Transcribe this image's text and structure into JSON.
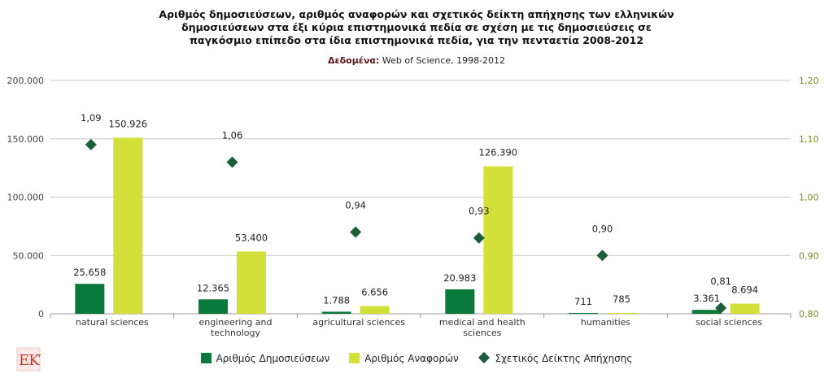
{
  "title": "Αριθμός δημοσιεύσεων, αριθμός αναφορών και σχετικός δείκτη απήχησης των ελληνικών\nδημοσιεύσεων στα έξι κύρια επιστημονικά πεδία σε σχέση με τις δημοσιεύσεις σε\nπαγκόσμιο επίπεδο στα ίδια επιστημονικά πεδία, για την πενταετία 2008-2012",
  "source_label": "Δεδομένα:",
  "source_value": "Web of Science, 1998-2012",
  "logo_text": "EKT",
  "colors": {
    "publications": "#0a7a3c",
    "citations": "#d4e03a",
    "impact": "#1c5e3a",
    "right_axis": "#7a8a2a",
    "grid": "#c8c8c8"
  },
  "chart_data": {
    "type": "bar",
    "title": "Αριθμός δημοσιεύσεων, αριθμός αναφορών και σχετικός δείκτη απήχησης των ελληνικών δημοσιεύσεων στα έξι κύρια επιστημονικά πεδία σε σχέση με τις δημοσιεύσεις σε παγκόσμιο επίπεδο στα ίδια επιστημονικά πεδία, για την πενταετία 2008-2012",
    "categories": [
      "natural sciences",
      "engineering and technology",
      "agricultural sciences",
      "medical and health sciences",
      "humanities",
      "social sciences"
    ],
    "category_lines": [
      [
        "natural sciences"
      ],
      [
        "engineering and",
        "technology"
      ],
      [
        "agricultural sciences"
      ],
      [
        "medical and health",
        "sciences"
      ],
      [
        "humanities"
      ],
      [
        "social sciences"
      ]
    ],
    "series": [
      {
        "name": "Αριθμός Δημοσιεύσεων",
        "type": "bar",
        "axis": "left",
        "values": [
          25658,
          12365,
          1788,
          20983,
          711,
          3361
        ],
        "labels": [
          "25.658",
          "12.365",
          "1.788",
          "20.983",
          "711",
          "3.361"
        ]
      },
      {
        "name": "Αριθμός Αναφορών",
        "type": "bar",
        "axis": "left",
        "values": [
          150926,
          53400,
          6656,
          126390,
          785,
          8694
        ],
        "labels": [
          "150.926",
          "53.400",
          "6.656",
          "126.390",
          "785",
          "8.694"
        ]
      },
      {
        "name": "Σχετικός Δείκτης Απήχησης",
        "type": "scatter",
        "marker": "diamond",
        "axis": "right",
        "values": [
          1.09,
          1.06,
          0.94,
          0.93,
          0.9,
          0.81
        ],
        "labels": [
          "1,09",
          "1,06",
          "0,94",
          "0,93",
          "0,90",
          "0,81"
        ]
      }
    ],
    "y_left": {
      "min": 0,
      "max": 200000,
      "ticks": [
        0,
        50000,
        100000,
        150000,
        200000
      ],
      "tick_labels": [
        "0",
        "50.000",
        "100.000",
        "150.000",
        "200.000"
      ]
    },
    "y_right": {
      "min": 0.8,
      "max": 1.2,
      "ticks": [
        0.8,
        0.9,
        1.0,
        1.1,
        1.2
      ],
      "tick_labels": [
        "0,80",
        "0,90",
        "1,00",
        "1,10",
        "1,20"
      ]
    },
    "grid": true,
    "legend": "bottom"
  }
}
